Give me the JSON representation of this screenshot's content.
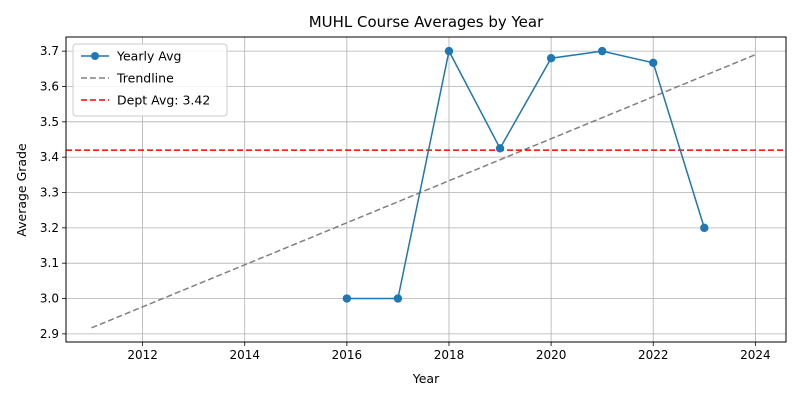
{
  "chart_data": {
    "type": "line",
    "title": "MUHL Course Averages by Year",
    "xlabel": "Year",
    "ylabel": "Average Grade",
    "xlim": [
      2010.5,
      2024.6
    ],
    "ylim": [
      2.877,
      3.74
    ],
    "xticks": [
      2012,
      2014,
      2016,
      2018,
      2020,
      2022,
      2024
    ],
    "yticks": [
      2.9,
      3.0,
      3.1,
      3.2,
      3.3,
      3.4,
      3.5,
      3.6,
      3.7
    ],
    "grid": true,
    "legend_position": "upper-left",
    "series": [
      {
        "name": "Yearly Avg",
        "style": "solid-line-with-markers",
        "color": "#1f77b4",
        "x": [
          2016,
          2017,
          2018,
          2019,
          2020,
          2021,
          2022,
          2023
        ],
        "y": [
          3.0,
          3.0,
          3.7,
          3.425,
          3.68,
          3.7,
          3.667,
          3.2
        ]
      },
      {
        "name": "Trendline",
        "style": "dashed",
        "color": "#808080",
        "x": [
          2011,
          2024
        ],
        "y": [
          2.917,
          3.69
        ]
      },
      {
        "name": "Dept Avg: 3.42",
        "style": "dashed-horizontal",
        "color": "#ff0000",
        "y": 3.42
      }
    ]
  }
}
